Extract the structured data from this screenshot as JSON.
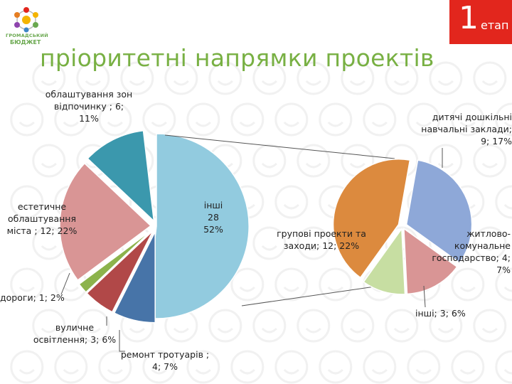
{
  "header": {
    "logo_line1": "ГРОМАДСЬКИЙ",
    "logo_line2": "БЮДЖЕТ",
    "stage_number": "1",
    "stage_word": "етап",
    "title": "пріоритетні напрямки проектів"
  },
  "colors": {
    "accent_green": "#78b043",
    "stage_red": "#e2261d"
  },
  "chart_data": [
    {
      "type": "pie",
      "title": "",
      "slices": [
        {
          "label": "інші",
          "value": 28,
          "percent": "52%",
          "color": "#92cbdf",
          "text": "інші\n28\n52%"
        },
        {
          "label": "ремонт тротуарів",
          "value": 4,
          "percent": "7%",
          "color": "#4774a8",
          "text": "ремонт тротуарів ;\n4; 7%"
        },
        {
          "label": "вуличне освітлення",
          "value": 3,
          "percent": "6%",
          "color": "#b14848",
          "text": "вуличне\nосвітлення; 3; 6%"
        },
        {
          "label": "дороги",
          "value": 1,
          "percent": "2%",
          "color": "#8cb34c",
          "text": "дороги; 1; 2%"
        },
        {
          "label": "естетичне облаштування міста",
          "value": 12,
          "percent": "22%",
          "color": "#d99595",
          "text": "естетичне\nоблаштування\nміста ; 12; 22%"
        },
        {
          "label": "облаштування зон відпочинку",
          "value": 6,
          "percent": "11%",
          "color": "#3b98ad",
          "text": "облаштування зон\nвідпочинку ; 6;\n11%"
        }
      ]
    },
    {
      "type": "pie",
      "title": "",
      "slices": [
        {
          "label": "дитячі дошкільні навчальні заклади",
          "value": 9,
          "percent": "17%",
          "color": "#8ea8d8",
          "text": "дитячі дошкільні\nнавчальні заклади;\n9; 17%"
        },
        {
          "label": "житлово-комунальне господарство",
          "value": 4,
          "percent": "7%",
          "color": "#d99595",
          "text": "житлово-\nкомунальне\nгосподарство; 4;\n7%"
        },
        {
          "label": "інші",
          "value": 3,
          "percent": "6%",
          "color": "#c7dea2",
          "text": "інші; 3; 6%"
        },
        {
          "label": "групові проекти та заходи",
          "value": 12,
          "percent": "22%",
          "color": "#dc8a3e",
          "text": "групові проекти та\nзаходи; 12; 22%"
        }
      ]
    }
  ]
}
